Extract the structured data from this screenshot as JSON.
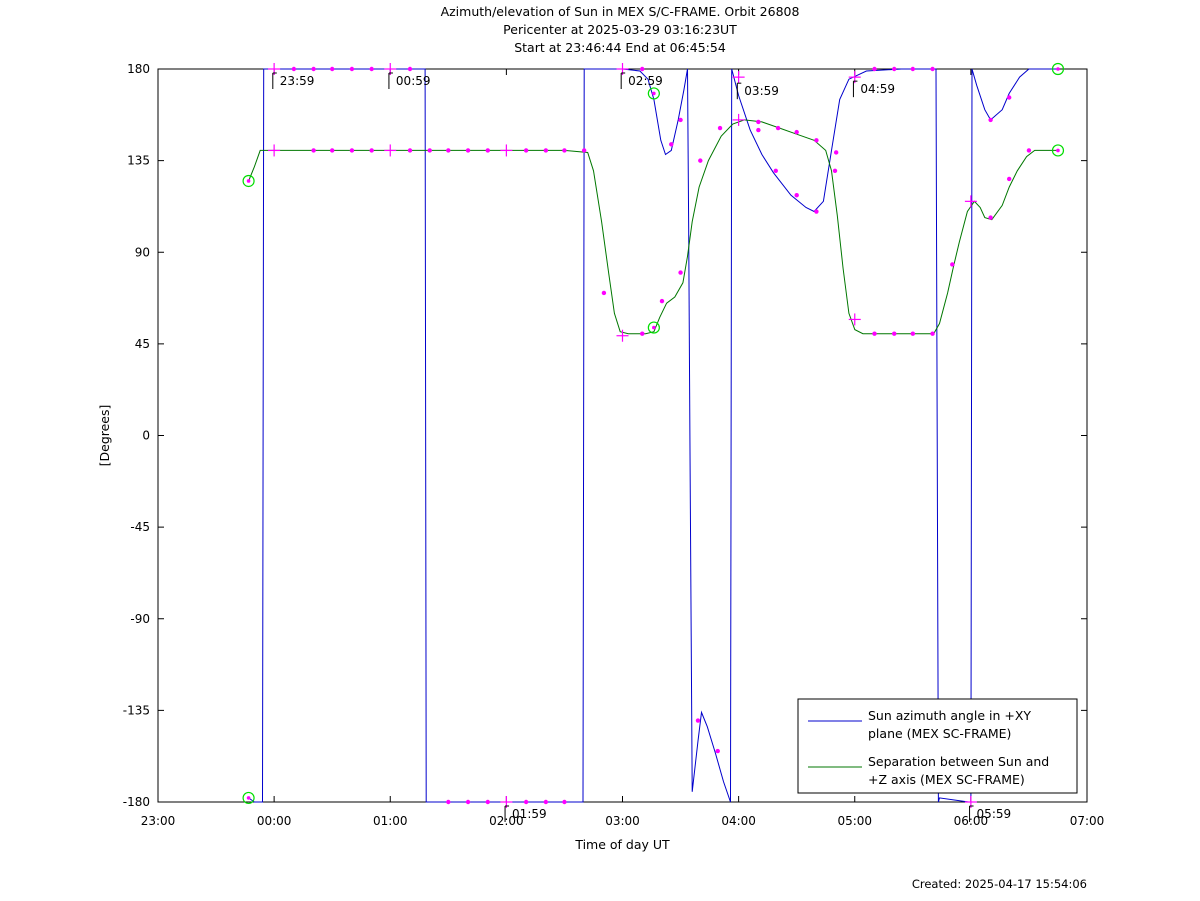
{
  "title": {
    "line1": "Azimuth/elevation of Sun in MEX S/C-FRAME.  Orbit 26808",
    "line2": "Pericenter at 2025-03-29 03:16:23UT",
    "line3": "Start at 23:46:44 End at 06:45:54"
  },
  "footer": "Created: 2025-04-17 15:54:06",
  "colors": {
    "azimuth": "#0000cc",
    "separation": "#007700",
    "marker": "#ff00ff",
    "circle": "#00dd00"
  },
  "chart_data": {
    "type": "line",
    "xlabel": "Time of day UT",
    "ylabel": "[Degrees]",
    "xlim": [
      -1,
      7
    ],
    "ylim": [
      -180,
      180
    ],
    "xticks": [
      {
        "v": -1,
        "label": "23:00"
      },
      {
        "v": 0,
        "label": "00:00"
      },
      {
        "v": 1,
        "label": "01:00"
      },
      {
        "v": 2,
        "label": "02:00"
      },
      {
        "v": 3,
        "label": "03:00"
      },
      {
        "v": 4,
        "label": "04:00"
      },
      {
        "v": 5,
        "label": "05:00"
      },
      {
        "v": 6,
        "label": "06:00"
      },
      {
        "v": 7,
        "label": "07:00"
      }
    ],
    "yticks": [
      {
        "v": 180,
        "label": "180"
      },
      {
        "v": 135,
        "label": "135"
      },
      {
        "v": 90,
        "label": "90"
      },
      {
        "v": 45,
        "label": "45"
      },
      {
        "v": 0,
        "label": "0"
      },
      {
        "v": -45,
        "label": "-45"
      },
      {
        "v": -90,
        "label": "-90"
      },
      {
        "v": -135,
        "label": "-135"
      },
      {
        "v": -180,
        "label": "-180"
      }
    ],
    "legend_position": "bottom-right",
    "series": [
      {
        "name": "Sun azimuth angle in +XY plane (MEX SC-FRAME)",
        "legend_lines": [
          "Sun azimuth angle in +XY",
          "plane (MEX SC-FRAME)"
        ],
        "color": "#0000cc",
        "points": [
          [
            -0.22,
            -178
          ],
          [
            -0.17,
            -180
          ],
          [
            -0.1,
            -180
          ],
          [
            -0.09,
            180
          ],
          [
            0.2,
            180
          ],
          [
            0.5,
            180
          ],
          [
            0.9,
            180
          ],
          [
            1.25,
            180
          ],
          [
            1.3,
            180
          ],
          [
            1.31,
            -180
          ],
          [
            1.6,
            -180
          ],
          [
            2.0,
            -180
          ],
          [
            2.4,
            -180
          ],
          [
            2.66,
            -180
          ],
          [
            2.67,
            180
          ],
          [
            3.0,
            180
          ],
          [
            3.15,
            179
          ],
          [
            3.22,
            175
          ],
          [
            3.27,
            165
          ],
          [
            3.33,
            145
          ],
          [
            3.37,
            138
          ],
          [
            3.42,
            140
          ],
          [
            3.48,
            155
          ],
          [
            3.53,
            170
          ],
          [
            3.56,
            180
          ],
          [
            3.57,
            100
          ],
          [
            3.58,
            0
          ],
          [
            3.6,
            -175
          ],
          [
            3.65,
            -150
          ],
          [
            3.68,
            -136
          ],
          [
            3.73,
            -143
          ],
          [
            3.8,
            -156
          ],
          [
            3.87,
            -170
          ],
          [
            3.93,
            -180
          ],
          [
            3.94,
            180
          ],
          [
            4.0,
            167
          ],
          [
            4.1,
            150
          ],
          [
            4.2,
            138
          ],
          [
            4.3,
            129
          ],
          [
            4.45,
            118
          ],
          [
            4.58,
            112
          ],
          [
            4.65,
            110
          ],
          [
            4.73,
            115
          ],
          [
            4.8,
            140
          ],
          [
            4.87,
            165
          ],
          [
            4.95,
            175
          ],
          [
            5.1,
            179
          ],
          [
            5.4,
            180
          ],
          [
            5.7,
            180
          ],
          [
            5.71,
            0
          ],
          [
            5.72,
            -180
          ],
          [
            5.73,
            -178
          ],
          [
            5.98,
            -180
          ],
          [
            6.0,
            -180
          ],
          [
            6.01,
            180
          ],
          [
            6.05,
            172
          ],
          [
            6.12,
            160
          ],
          [
            6.17,
            155
          ],
          [
            6.27,
            160
          ],
          [
            6.33,
            168
          ],
          [
            6.42,
            176
          ],
          [
            6.5,
            180
          ],
          [
            6.75,
            180
          ]
        ]
      },
      {
        "name": "Separation between Sun and +Z axis (MEX SC-FRAME)",
        "legend_lines": [
          "Separation between Sun and",
          "+Z axis (MEX SC-FRAME)"
        ],
        "color": "#007700",
        "points": [
          [
            -0.22,
            125
          ],
          [
            -0.17,
            132
          ],
          [
            -0.12,
            140
          ],
          [
            0.2,
            140
          ],
          [
            0.6,
            140
          ],
          [
            1.0,
            140
          ],
          [
            1.5,
            140
          ],
          [
            2.0,
            140
          ],
          [
            2.5,
            140
          ],
          [
            2.7,
            139
          ],
          [
            2.75,
            130
          ],
          [
            2.82,
            105
          ],
          [
            2.88,
            80
          ],
          [
            2.93,
            60
          ],
          [
            2.98,
            51
          ],
          [
            3.05,
            50
          ],
          [
            3.2,
            50
          ],
          [
            3.27,
            51
          ],
          [
            3.32,
            58
          ],
          [
            3.38,
            65
          ],
          [
            3.45,
            68
          ],
          [
            3.52,
            75
          ],
          [
            3.56,
            88
          ],
          [
            3.6,
            105
          ],
          [
            3.66,
            122
          ],
          [
            3.74,
            135
          ],
          [
            3.85,
            147
          ],
          [
            3.95,
            153
          ],
          [
            4.05,
            155
          ],
          [
            4.2,
            154
          ],
          [
            4.35,
            151
          ],
          [
            4.5,
            148
          ],
          [
            4.65,
            145
          ],
          [
            4.75,
            140
          ],
          [
            4.8,
            130
          ],
          [
            4.85,
            108
          ],
          [
            4.9,
            82
          ],
          [
            4.95,
            60
          ],
          [
            5.0,
            52
          ],
          [
            5.07,
            50
          ],
          [
            5.3,
            50
          ],
          [
            5.68,
            50
          ],
          [
            5.73,
            55
          ],
          [
            5.8,
            70
          ],
          [
            5.85,
            83
          ],
          [
            5.9,
            95
          ],
          [
            5.97,
            110
          ],
          [
            6.03,
            115
          ],
          [
            6.08,
            112
          ],
          [
            6.12,
            107
          ],
          [
            6.18,
            106
          ],
          [
            6.27,
            113
          ],
          [
            6.33,
            122
          ],
          [
            6.4,
            130
          ],
          [
            6.48,
            137
          ],
          [
            6.55,
            140
          ],
          [
            6.75,
            140
          ]
        ]
      }
    ],
    "time_marks": [
      {
        "x": -0.02,
        "label": "23:59",
        "y": 180
      },
      {
        "x": 0.98,
        "label": "00:59",
        "y": 180
      },
      {
        "x": 1.98,
        "label": "01:59",
        "y": -180
      },
      {
        "x": 2.98,
        "label": "02:59",
        "y": 180
      },
      {
        "x": 3.98,
        "label": "03:59",
        "y": 175
      },
      {
        "x": 4.98,
        "label": "04:59",
        "y": 176
      },
      {
        "x": 5.98,
        "label": "05:59",
        "y": -180
      }
    ],
    "azimuth_dots": [
      [
        0.17,
        180
      ],
      [
        0.34,
        180
      ],
      [
        0.5,
        180
      ],
      [
        0.67,
        180
      ],
      [
        0.84,
        180
      ],
      [
        1.17,
        180
      ],
      [
        1.5,
        -180
      ],
      [
        1.67,
        -180
      ],
      [
        1.84,
        -180
      ],
      [
        2.17,
        -180
      ],
      [
        2.34,
        -180
      ],
      [
        2.5,
        -180
      ],
      [
        3.17,
        180
      ],
      [
        3.42,
        143
      ],
      [
        3.5,
        155
      ],
      [
        3.65,
        -140
      ],
      [
        3.82,
        -155
      ],
      [
        4.17,
        150
      ],
      [
        4.32,
        130
      ],
      [
        4.5,
        118
      ],
      [
        4.67,
        110
      ],
      [
        4.83,
        130
      ],
      [
        5.17,
        180
      ],
      [
        5.34,
        180
      ],
      [
        5.5,
        180
      ],
      [
        5.67,
        180
      ],
      [
        6.17,
        155
      ],
      [
        6.33,
        166
      ]
    ],
    "separation_dots": [
      [
        0.34,
        140
      ],
      [
        0.5,
        140
      ],
      [
        0.67,
        140
      ],
      [
        0.84,
        140
      ],
      [
        1.17,
        140
      ],
      [
        1.34,
        140
      ],
      [
        1.5,
        140
      ],
      [
        1.67,
        140
      ],
      [
        1.84,
        140
      ],
      [
        2.17,
        140
      ],
      [
        2.34,
        140
      ],
      [
        2.5,
        140
      ],
      [
        2.67,
        140
      ],
      [
        2.84,
        70
      ],
      [
        3.17,
        50
      ],
      [
        3.34,
        66
      ],
      [
        3.5,
        80
      ],
      [
        3.67,
        135
      ],
      [
        3.84,
        151
      ],
      [
        4.17,
        154
      ],
      [
        4.34,
        151
      ],
      [
        4.5,
        149
      ],
      [
        4.67,
        145
      ],
      [
        4.84,
        139
      ],
      [
        5.17,
        50
      ],
      [
        5.34,
        50
      ],
      [
        5.5,
        50
      ],
      [
        5.67,
        50
      ],
      [
        5.84,
        84
      ],
      [
        6.17,
        107
      ],
      [
        6.33,
        126
      ],
      [
        6.5,
        140
      ]
    ],
    "crosses": [
      [
        0.0,
        180
      ],
      [
        0.0,
        140
      ],
      [
        1.0,
        180
      ],
      [
        1.0,
        140
      ],
      [
        2.0,
        -180
      ],
      [
        2.0,
        140
      ],
      [
        3.0,
        180
      ],
      [
        3.0,
        49
      ],
      [
        4.0,
        176
      ],
      [
        4.0,
        155
      ],
      [
        5.0,
        176
      ],
      [
        5.0,
        57
      ],
      [
        6.0,
        -180
      ],
      [
        6.0,
        115
      ]
    ],
    "circles": [
      [
        -0.22,
        125
      ],
      [
        -0.22,
        -178
      ],
      [
        3.27,
        168
      ],
      [
        3.27,
        53
      ],
      [
        6.75,
        180
      ],
      [
        6.75,
        140
      ]
    ]
  }
}
